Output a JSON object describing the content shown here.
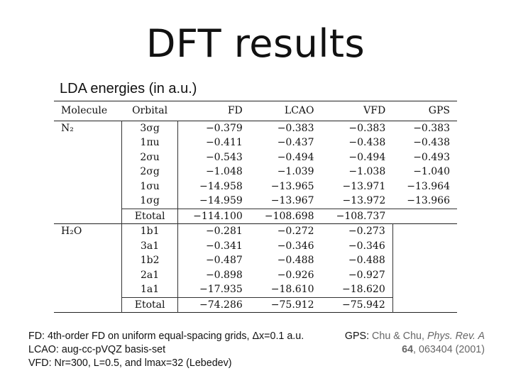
{
  "slide": {
    "title": "DFT results",
    "subtitle": "LDA energies (in a.u.)"
  },
  "table": {
    "headers": [
      "Molecule",
      "Orbital",
      "FD",
      "LCAO",
      "VFD",
      "GPS"
    ],
    "groups": [
      {
        "molecule": "N₂",
        "rows": [
          {
            "orbital": "3σg",
            "fd": "−0.379",
            "lcao": "−0.383",
            "vfd": "−0.383",
            "gps": "−0.383"
          },
          {
            "orbital": "1πu",
            "fd": "−0.411",
            "lcao": "−0.437",
            "vfd": "−0.438",
            "gps": "−0.438"
          },
          {
            "orbital": "2σu",
            "fd": "−0.543",
            "lcao": "−0.494",
            "vfd": "−0.494",
            "gps": "−0.493"
          },
          {
            "orbital": "2σg",
            "fd": "−1.048",
            "lcao": "−1.039",
            "vfd": "−1.038",
            "gps": "−1.040"
          },
          {
            "orbital": "1σu",
            "fd": "−14.958",
            "lcao": "−13.965",
            "vfd": "−13.971",
            "gps": "−13.964"
          },
          {
            "orbital": "1σg",
            "fd": "−14.959",
            "lcao": "−13.967",
            "vfd": "−13.972",
            "gps": "−13.966"
          }
        ],
        "total": {
          "label": "Etotal",
          "fd": "−114.100",
          "lcao": "−108.698",
          "vfd": "−108.737",
          "gps": ""
        }
      },
      {
        "molecule": "H₂O",
        "rows": [
          {
            "orbital": "1b1",
            "fd": "−0.281",
            "lcao": "−0.272",
            "vfd": "−0.273",
            "gps": ""
          },
          {
            "orbital": "3a1",
            "fd": "−0.341",
            "lcao": "−0.346",
            "vfd": "−0.346",
            "gps": ""
          },
          {
            "orbital": "1b2",
            "fd": "−0.487",
            "lcao": "−0.488",
            "vfd": "−0.488",
            "gps": ""
          },
          {
            "orbital": "2a1",
            "fd": "−0.898",
            "lcao": "−0.926",
            "vfd": "−0.927",
            "gps": ""
          },
          {
            "orbital": "1a1",
            "fd": "−17.935",
            "lcao": "−18.610",
            "vfd": "−18.620",
            "gps": ""
          }
        ],
        "total": {
          "label": "Etotal",
          "fd": "−74.286",
          "lcao": "−75.912",
          "vfd": "−75.942",
          "gps": ""
        }
      }
    ]
  },
  "notes": {
    "fd_line": "FD: 4th-order FD on uniform equal-spacing grids, Δx=0.1 a.u.",
    "lcao_line": "LCAO: aug-cc-pVQZ basis-set",
    "vfd_line": "VFD: Nr=300, L=0.5, and lmax=32 (Lebedev)"
  },
  "reference": {
    "label": "GPS:",
    "authors": "Chu & Chu,",
    "journal": "Phys. Rev. A",
    "volume": "64",
    "pages_year": ", 063404 (2001)"
  }
}
